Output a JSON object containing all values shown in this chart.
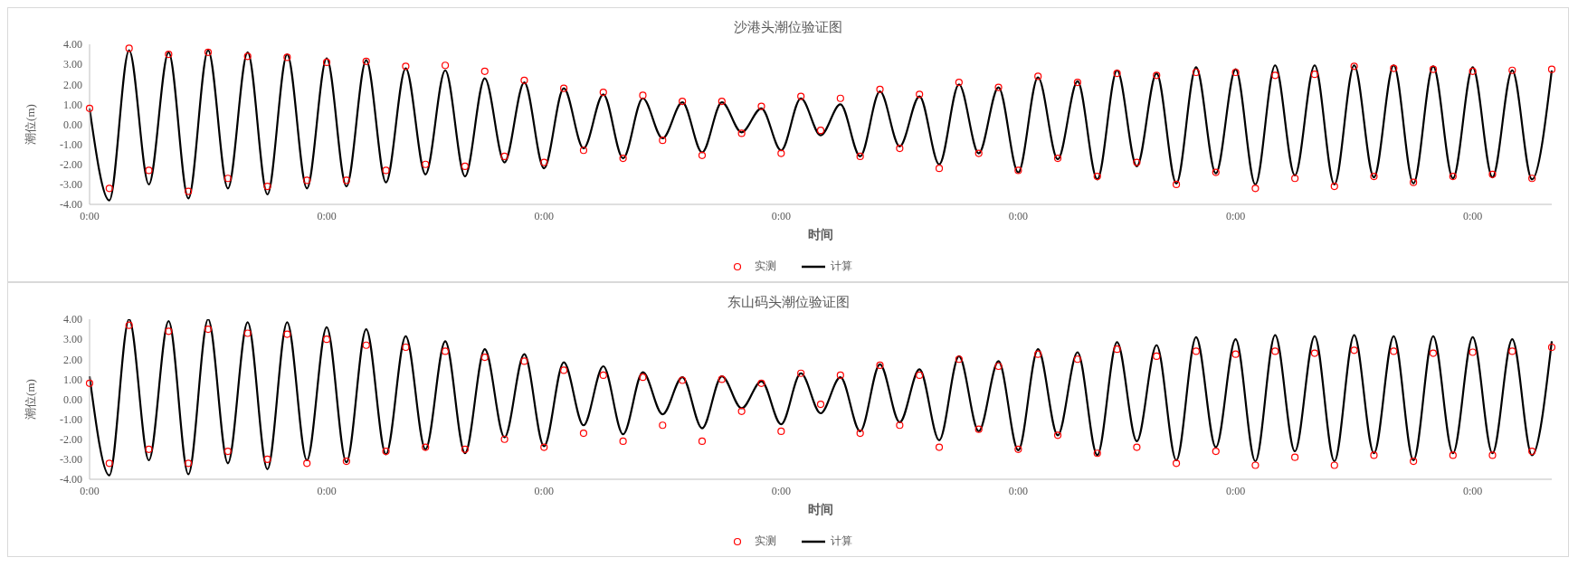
{
  "chart_data": [
    {
      "type": "line",
      "title": "沙港头潮位验证图",
      "xlabel": "时间",
      "ylabel": "潮位(m)",
      "legend": "bottom",
      "grid": false,
      "categories": [
        "0:00",
        null,
        null,
        null,
        null,
        null,
        null,
        null,
        null,
        null,
        null,
        null,
        "0:00",
        null,
        null,
        null,
        null,
        null,
        null,
        null,
        null,
        null,
        null,
        "0:00",
        null,
        null,
        null,
        null,
        null,
        null,
        null,
        null,
        null,
        null,
        null,
        "0:00",
        null,
        null,
        null,
        null,
        null,
        null,
        null,
        null,
        null,
        null,
        null,
        "0:00",
        null,
        null,
        null,
        null,
        null,
        null,
        null,
        null,
        null,
        null,
        "0:00",
        null,
        null,
        null,
        null,
        null,
        null,
        null,
        null,
        null,
        null,
        null,
        "0:00",
        null,
        null,
        null,
        null
      ],
      "ylim": [
        -4,
        4
      ],
      "yticks": [
        {
          "value": -4,
          "label": "-4.00"
        },
        {
          "value": -3,
          "label": "-3.00"
        },
        {
          "value": -2,
          "label": "-2.00"
        },
        {
          "value": -1,
          "label": "-1.00"
        },
        {
          "value": 0,
          "label": "0.00"
        },
        {
          "value": 1,
          "label": "1.00"
        },
        {
          "value": 2,
          "label": "2.00"
        },
        {
          "value": 3,
          "label": "3.00"
        },
        {
          "value": 4,
          "label": "4.00"
        }
      ],
      "series": [
        {
          "name": "实测",
          "type": "scatter",
          "marker": "circle",
          "color": "#ff0000",
          "values": [
            0.8,
            -3.2,
            3.8,
            -2.3,
            3.5,
            -3.35,
            3.6,
            -2.7,
            3.4,
            -3.1,
            3.35,
            -2.8,
            3.1,
            -2.8,
            3.15,
            -2.3,
            2.9,
            -2.0,
            2.95,
            -2.1,
            2.65,
            -1.6,
            2.2,
            -1.9,
            1.8,
            -1.3,
            1.6,
            -1.7,
            1.45,
            -0.8,
            1.15,
            -1.55,
            1.15,
            -0.45,
            0.9,
            -1.45,
            1.4,
            -0.3,
            1.3,
            -1.6,
            1.75,
            -1.2,
            1.5,
            -2.2,
            2.1,
            -1.45,
            1.85,
            -2.3,
            2.4,
            -1.7,
            2.1,
            -2.6,
            2.55,
            -1.9,
            2.45,
            -3.0,
            2.6,
            -2.4,
            2.6,
            -3.2,
            2.45,
            -2.7,
            2.5,
            -3.1,
            2.9,
            -2.6,
            2.8,
            -2.9,
            2.75,
            -2.6,
            2.65,
            -2.5,
            2.7,
            -2.7,
            2.75
          ]
        },
        {
          "name": "计算",
          "color": "#000000",
          "values": [
            0.8,
            -3.8,
            3.7,
            -3.0,
            3.6,
            -3.7,
            3.7,
            -3.2,
            3.6,
            -3.5,
            3.5,
            -3.2,
            3.3,
            -3.1,
            3.2,
            -2.9,
            2.8,
            -2.5,
            2.7,
            -2.6,
            2.3,
            -1.9,
            2.1,
            -2.2,
            1.8,
            -1.2,
            1.5,
            -1.7,
            1.3,
            -0.7,
            1.1,
            -1.4,
            1.1,
            -0.4,
            0.8,
            -1.3,
            1.3,
            -0.55,
            1.0,
            -1.6,
            1.65,
            -1.1,
            1.4,
            -2.0,
            2.0,
            -1.45,
            1.85,
            -2.4,
            2.35,
            -1.75,
            2.15,
            -2.75,
            2.7,
            -2.1,
            2.55,
            -2.95,
            2.85,
            -2.45,
            2.75,
            -3.0,
            2.95,
            -2.55,
            2.95,
            -3.0,
            2.95,
            -2.65,
            2.95,
            -2.95,
            2.9,
            -2.7,
            2.85,
            -2.65,
            2.7,
            -2.75,
            2.7
          ]
        }
      ]
    },
    {
      "type": "line",
      "title": "东山码头潮位验证图",
      "xlabel": "时间",
      "ylabel": "潮位(m)",
      "legend": "bottom",
      "grid": false,
      "categories": [
        "0:00",
        null,
        null,
        null,
        null,
        null,
        null,
        null,
        null,
        null,
        null,
        null,
        "0:00",
        null,
        null,
        null,
        null,
        null,
        null,
        null,
        null,
        null,
        null,
        "0:00",
        null,
        null,
        null,
        null,
        null,
        null,
        null,
        null,
        null,
        null,
        null,
        "0:00",
        null,
        null,
        null,
        null,
        null,
        null,
        null,
        null,
        null,
        null,
        null,
        "0:00",
        null,
        null,
        null,
        null,
        null,
        null,
        null,
        null,
        null,
        null,
        "0:00",
        null,
        null,
        null,
        null,
        null,
        null,
        null,
        null,
        null,
        null,
        null,
        "0:00",
        null,
        null,
        null,
        null
      ],
      "ylim": [
        -4,
        4
      ],
      "yticks": [
        {
          "value": -4,
          "label": "-4.00"
        },
        {
          "value": -3,
          "label": "-3.00"
        },
        {
          "value": -2,
          "label": "-2.00"
        },
        {
          "value": -1,
          "label": "-1.00"
        },
        {
          "value": 0,
          "label": "0.00"
        },
        {
          "value": 1,
          "label": "1.00"
        },
        {
          "value": 2,
          "label": "2.00"
        },
        {
          "value": 3,
          "label": "3.00"
        },
        {
          "value": 4,
          "label": "4.00"
        }
      ],
      "series": [
        {
          "name": "实测",
          "type": "scatter",
          "marker": "circle",
          "color": "#ff0000",
          "values": [
            0.8,
            -3.2,
            3.7,
            -2.5,
            3.4,
            -3.2,
            3.5,
            -2.6,
            3.3,
            -3.0,
            3.25,
            -3.2,
            3.0,
            -3.1,
            2.7,
            -2.6,
            2.6,
            -2.4,
            2.4,
            -2.5,
            2.1,
            -2.0,
            1.9,
            -2.4,
            1.45,
            -1.7,
            1.2,
            -2.1,
            1.1,
            -1.3,
            0.95,
            -2.1,
            1.0,
            -0.6,
            0.8,
            -1.6,
            1.3,
            -0.25,
            1.2,
            -1.7,
            1.7,
            -1.3,
            1.2,
            -2.4,
            2.0,
            -1.5,
            1.65,
            -2.5,
            2.25,
            -1.8,
            2.0,
            -2.7,
            2.5,
            -2.4,
            2.15,
            -3.2,
            2.4,
            -2.6,
            2.25,
            -3.3,
            2.4,
            -2.9,
            2.3,
            -3.3,
            2.45,
            -2.8,
            2.4,
            -3.1,
            2.3,
            -2.8,
            2.35,
            -2.8,
            2.4,
            -2.6,
            2.6
          ]
        },
        {
          "name": "计算",
          "color": "#000000",
          "values": [
            1.15,
            -3.8,
            4.0,
            -3.05,
            3.9,
            -3.75,
            4.0,
            -3.2,
            3.85,
            -3.5,
            3.85,
            -3.05,
            3.6,
            -3.15,
            3.5,
            -2.75,
            3.15,
            -2.5,
            2.9,
            -2.7,
            2.5,
            -1.9,
            2.25,
            -2.35,
            1.85,
            -1.3,
            1.65,
            -1.75,
            1.35,
            -0.75,
            1.1,
            -1.45,
            1.15,
            -0.45,
            0.9,
            -1.25,
            1.3,
            -0.7,
            1.1,
            -1.6,
            1.75,
            -1.15,
            1.5,
            -2.05,
            2.15,
            -1.6,
            1.9,
            -2.55,
            2.5,
            -1.8,
            2.35,
            -2.8,
            2.85,
            -2.1,
            2.7,
            -3.05,
            3.1,
            -2.4,
            3.0,
            -3.1,
            3.2,
            -2.6,
            3.15,
            -3.1,
            3.2,
            -2.7,
            3.15,
            -3.05,
            3.15,
            -2.7,
            3.1,
            -2.7,
            3.0,
            -2.8,
            2.9
          ]
        }
      ]
    }
  ]
}
